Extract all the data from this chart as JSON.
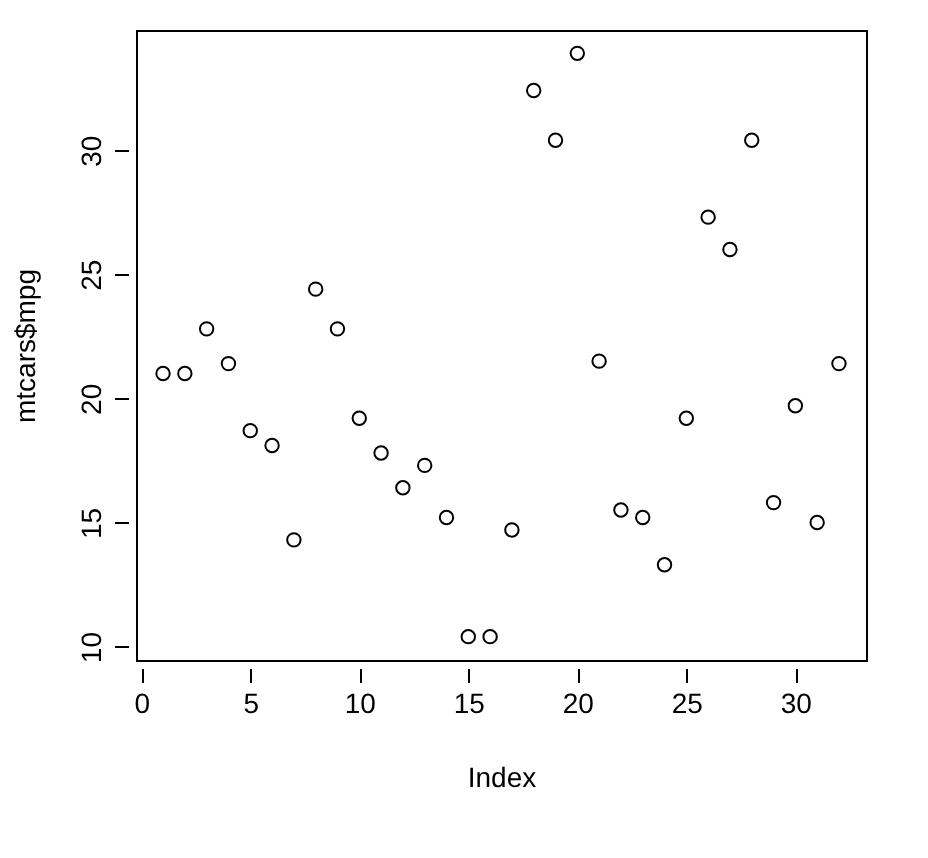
{
  "chart_data": {
    "type": "scatter",
    "xlabel": "Index",
    "ylabel": "mtcars$mpg",
    "x": [
      1,
      2,
      3,
      4,
      5,
      6,
      7,
      8,
      9,
      10,
      11,
      12,
      13,
      14,
      15,
      16,
      17,
      18,
      19,
      20,
      21,
      22,
      23,
      24,
      25,
      26,
      27,
      28,
      29,
      30,
      31,
      32
    ],
    "values": [
      21.0,
      21.0,
      22.8,
      21.4,
      18.7,
      18.1,
      14.3,
      24.4,
      22.8,
      19.2,
      17.8,
      16.4,
      17.3,
      15.2,
      10.4,
      10.4,
      14.7,
      32.4,
      30.4,
      33.9,
      21.5,
      15.5,
      15.2,
      13.3,
      19.2,
      27.3,
      26.0,
      30.4,
      15.8,
      19.7,
      15.0,
      21.4
    ],
    "xlim": [
      -0.24,
      33.24
    ],
    "ylim": [
      9.46,
      34.84
    ],
    "xticks": [
      0,
      5,
      10,
      15,
      20,
      25,
      30
    ],
    "yticks": [
      10,
      15,
      20,
      25,
      30
    ],
    "marker": "circle",
    "color": "#000000"
  }
}
